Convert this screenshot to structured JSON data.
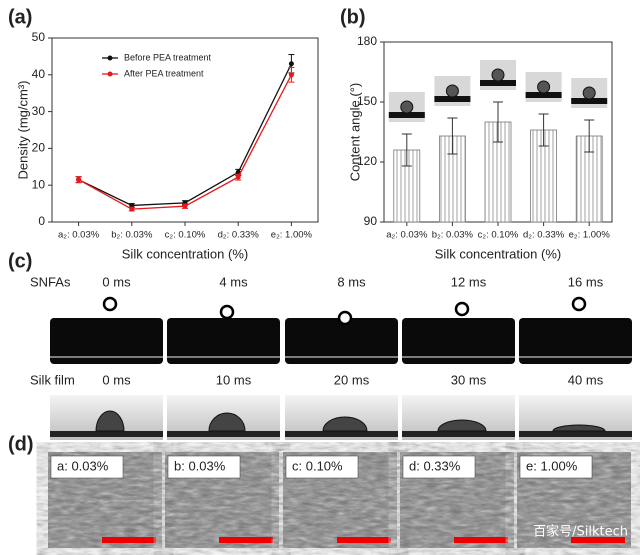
{
  "chart_data": [
    {
      "type": "line",
      "panel_label": "(a)",
      "categories": [
        "a₂: 0.03%",
        "b₂: 0.03%",
        "c₂: 0.10%",
        "d₂: 0.33%",
        "e₂: 1.00%"
      ],
      "x_label": "Silk concentration (%)",
      "y_label": "Density (mg/cm³)",
      "ylim": [
        0,
        50
      ],
      "yticks": [
        0,
        10,
        20,
        30,
        40,
        50
      ],
      "series": [
        {
          "name": "Before PEA treatment",
          "color": "#111111",
          "values": [
            11.5,
            4.5,
            5.2,
            13.5,
            43
          ],
          "errors": [
            0.8,
            0.5,
            0.6,
            0.8,
            2.5
          ]
        },
        {
          "name": "After PEA treatment",
          "color": "#e8191c",
          "values": [
            11.5,
            3.5,
            4.3,
            12.2,
            40
          ],
          "errors": [
            0.8,
            0.5,
            0.6,
            0.8,
            2
          ]
        }
      ]
    },
    {
      "type": "bar",
      "panel_label": "(b)",
      "categories": [
        "a₂: 0.03%",
        "b₂: 0.03%",
        "c₂: 0.10%",
        "d₂: 0.33%",
        "e₂: 1.00%"
      ],
      "x_label": "Silk concentration (%)",
      "y_label": "Content angle (°)",
      "ylim": [
        90,
        180
      ],
      "yticks": [
        90,
        120,
        150,
        180
      ],
      "values": [
        126,
        133,
        140,
        136,
        133
      ],
      "errors": [
        8,
        9,
        10,
        8,
        8
      ],
      "color": "#777777"
    }
  ],
  "panel_c": {
    "label": "(c)",
    "rows": [
      {
        "name": "SNFAs",
        "times": [
          "0 ms",
          "4 ms",
          "8 ms",
          "12 ms",
          "16 ms"
        ]
      },
      {
        "name": "Silk film",
        "times": [
          "0 ms",
          "10 ms",
          "20 ms",
          "30 ms",
          "40 ms"
        ]
      }
    ]
  },
  "panel_d": {
    "label": "(d)",
    "images": [
      "a: 0.03%",
      "b: 0.03%",
      "c: 0.10%",
      "d: 0.33%",
      "e: 1.00%"
    ]
  },
  "watermark": "百家号/Silktech"
}
